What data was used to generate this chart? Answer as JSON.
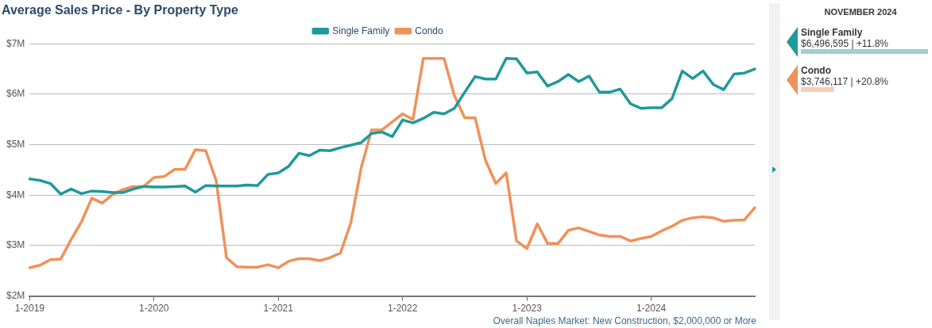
{
  "chart_data": {
    "type": "line",
    "title": "Average Sales Price - By Property Type",
    "categories": [
      "1-2019",
      null,
      null,
      null,
      null,
      null,
      null,
      null,
      null,
      null,
      null,
      null,
      "1-2020",
      null,
      null,
      null,
      null,
      null,
      null,
      null,
      null,
      null,
      null,
      null,
      "1-2021",
      null,
      null,
      null,
      null,
      null,
      null,
      null,
      null,
      null,
      null,
      null,
      "1-2022",
      null,
      null,
      null,
      null,
      null,
      null,
      null,
      null,
      null,
      null,
      null,
      "1-2023",
      null,
      null,
      null,
      null,
      null,
      null,
      null,
      null,
      null,
      null,
      null,
      "1-2024",
      null,
      null,
      null,
      null,
      null,
      null,
      null,
      null,
      null,
      null
    ],
    "series": [
      {
        "name": "Single Family",
        "color": "#1f999b",
        "values": [
          4.32,
          4.29,
          4.23,
          4.02,
          4.12,
          4.03,
          4.08,
          4.07,
          4.05,
          4.05,
          4.12,
          4.17,
          4.16,
          4.16,
          4.17,
          4.18,
          4.06,
          4.19,
          4.18,
          4.18,
          4.18,
          4.2,
          4.19,
          4.41,
          4.44,
          4.57,
          4.83,
          4.78,
          4.89,
          4.88,
          4.94,
          4.99,
          5.04,
          5.22,
          5.25,
          5.16,
          5.49,
          5.43,
          5.52,
          5.64,
          5.61,
          5.72,
          6.04,
          6.35,
          6.3,
          6.3,
          6.71,
          6.7,
          6.42,
          6.44,
          6.16,
          6.25,
          6.39,
          6.25,
          6.36,
          6.04,
          6.04,
          6.1,
          5.81,
          5.72,
          5.73,
          5.73,
          5.91,
          6.46,
          6.31,
          6.46,
          6.19,
          6.09,
          6.4,
          6.42,
          6.5
        ]
      },
      {
        "name": "Condo",
        "color": "#f0915a",
        "values": [
          2.56,
          2.61,
          2.72,
          2.73,
          3.12,
          3.47,
          3.94,
          3.84,
          4.01,
          4.11,
          4.17,
          4.17,
          4.35,
          4.37,
          4.51,
          4.51,
          4.9,
          4.88,
          4.29,
          2.76,
          2.58,
          2.57,
          2.57,
          2.62,
          2.56,
          2.69,
          2.74,
          2.74,
          2.7,
          2.76,
          2.85,
          3.45,
          4.54,
          5.29,
          5.29,
          5.45,
          5.61,
          5.5,
          6.71,
          6.71,
          6.71,
          5.97,
          5.53,
          5.53,
          4.69,
          4.23,
          4.44,
          3.09,
          2.94,
          3.43,
          3.04,
          3.04,
          3.3,
          3.35,
          3.28,
          3.21,
          3.18,
          3.18,
          3.09,
          3.14,
          3.18,
          3.29,
          3.38,
          3.5,
          3.55,
          3.57,
          3.55,
          3.48,
          3.5,
          3.51,
          3.75
        ]
      }
    ],
    "ylim": [
      2,
      7
    ],
    "yticks": [
      {
        "value": 2,
        "label": "$2M"
      },
      {
        "value": 3,
        "label": "$3M"
      },
      {
        "value": 4,
        "label": "$4M"
      },
      {
        "value": 5,
        "label": "$5M"
      },
      {
        "value": 6,
        "label": "$6M"
      },
      {
        "value": 7,
        "label": "$7M"
      }
    ],
    "grid": "y",
    "legend": "top",
    "marker": "none",
    "line_style": "solid",
    "annotations": [
      "Overall Naples Market: New Construction, $2,000,000 or More",
      "NOVEMBER 2024",
      "Single Family",
      "$6,496,595 | +11.8%",
      "Condo",
      "$3,746,117 | +20.8%"
    ]
  }
}
